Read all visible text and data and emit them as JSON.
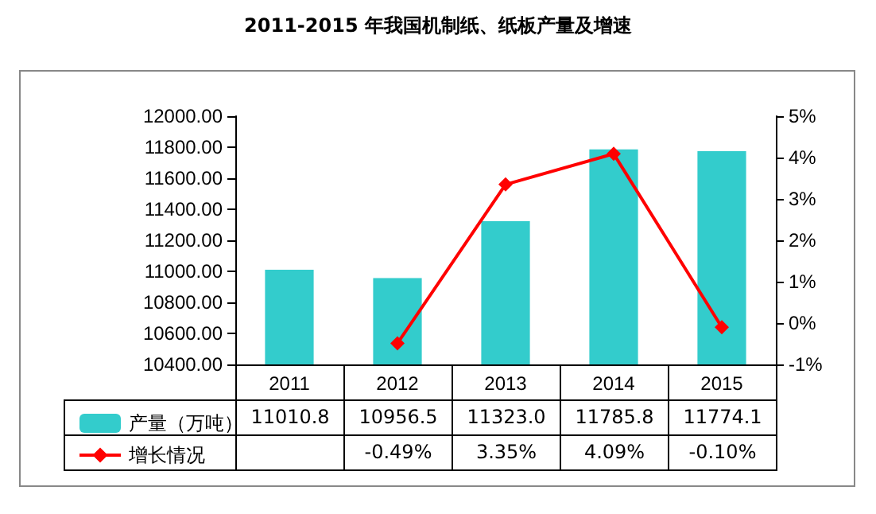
{
  "chart_data": {
    "type": "bar",
    "title": "2011-2015 年我国机制纸、纸板产量及增速",
    "categories": [
      "2011",
      "2012",
      "2013",
      "2014",
      "2015"
    ],
    "series": [
      {
        "name": "产量（万吨）",
        "color": "#33cccc",
        "values": [
          11010.8,
          10956.5,
          11323.0,
          11785.8,
          11774.1
        ],
        "value_labels": [
          "11010.8",
          "10956.5",
          "11323.0",
          "11785.8",
          "11774.1"
        ]
      },
      {
        "name": "增长情况",
        "type": "line",
        "axis": "y2",
        "color": "#ff0000",
        "marker": "diamond",
        "values": [
          null,
          -0.49,
          3.35,
          4.09,
          -0.1
        ],
        "value_labels": [
          null,
          "-0.49%",
          "3.35%",
          "4.09%",
          "-0.10%"
        ]
      }
    ],
    "ylim": [
      10400,
      12000
    ],
    "yticks": [
      {
        "value": 10400,
        "label": "10400.00"
      },
      {
        "value": 10600,
        "label": "10600.00"
      },
      {
        "value": 10800,
        "label": "10800.00"
      },
      {
        "value": 11000,
        "label": "11000.00"
      },
      {
        "value": 11200,
        "label": "11200.00"
      },
      {
        "value": 11400,
        "label": "11400.00"
      },
      {
        "value": 11600,
        "label": "11600.00"
      },
      {
        "value": 11800,
        "label": "11800.00"
      },
      {
        "value": 12000,
        "label": "12000.00"
      }
    ],
    "y2lim": [
      -1,
      5
    ],
    "y2ticks": [
      {
        "value": -1,
        "label": "-1%"
      },
      {
        "value": 0,
        "label": "0%"
      },
      {
        "value": 1,
        "label": "1%"
      },
      {
        "value": 2,
        "label": "2%"
      },
      {
        "value": 3,
        "label": "3%"
      },
      {
        "value": 4,
        "label": "4%"
      },
      {
        "value": 5,
        "label": "5%"
      }
    ],
    "legend": "bottom"
  }
}
